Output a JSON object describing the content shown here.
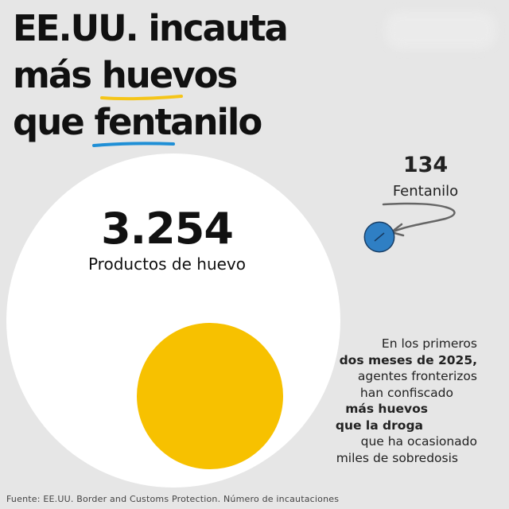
{
  "title": {
    "line1": "EE.UU. incauta",
    "line2_pre": "más ",
    "line2_hl": "huevos",
    "line3_pre": "que ",
    "line3_hl": "fentanilo"
  },
  "chart_data": {
    "type": "bubble",
    "series": [
      {
        "name": "Productos de huevo",
        "value": 3254,
        "value_label": "3.254",
        "color": "#f7c100"
      },
      {
        "name": "Fentanilo",
        "value": 134,
        "value_label": "134",
        "color": "#2f7fc4"
      }
    ]
  },
  "colors": {
    "egg_white": "#ffffff",
    "egg_yolk": "#f7c100",
    "fentanyl": "#2f7fc4",
    "underline_yellow": "#f5c518",
    "underline_blue": "#1f8fd6",
    "background": "#e6e6e6"
  },
  "note": {
    "l1": "En los primeros",
    "l2": "dos meses de 2025,",
    "l3": "agentes fronterizos",
    "l4": "han confiscado",
    "l5": "más huevos",
    "l6": "que la droga",
    "l7": "que ha ocasionado",
    "l8": "miles de sobredosis"
  },
  "source": "Fuente: EE.UU.  Border and Customs Protection. Número de incautaciones"
}
